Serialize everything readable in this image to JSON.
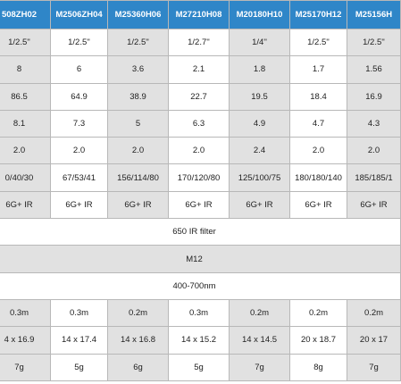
{
  "headers": [
    "508ZH02",
    "M2506ZH04",
    "M25360H06",
    "M27210H08",
    "M20180H10",
    "M25170H12",
    "M25156H"
  ],
  "rows": [
    [
      "1/2.5''",
      "1/2.5''",
      "1/2.5''",
      "1/2.7''",
      "1/4''",
      "1/2.5''",
      "1/2.5''"
    ],
    [
      "8",
      "6",
      "3.6",
      "2.1",
      "1.8",
      "1.7",
      "1.56"
    ],
    [
      "86.5",
      "64.9",
      "38.9",
      "22.7",
      "19.5",
      "18.4",
      "16.9"
    ],
    [
      "8.1",
      "7.3",
      "5",
      "6.3",
      "4.9",
      "4.7",
      "4.3"
    ],
    [
      "2.0",
      "2.0",
      "2.0",
      "2.0",
      "2.4",
      "2.0",
      "2.0"
    ],
    [
      "0/40/30",
      "67/53/41",
      "156/114/80",
      "170/120/80",
      "125/100/75",
      "180/180/140",
      "185/185/1"
    ],
    [
      "6G+ IR",
      "6G+ IR",
      "6G+ IR",
      "6G+ IR",
      "6G+ IR",
      "6G+ IR",
      "6G+ IR"
    ]
  ],
  "full_rows": [
    "650 IR filter",
    "M12",
    "400-700nm"
  ],
  "rows2": [
    [
      "0.3m",
      "0.3m",
      "0.2m",
      "0.3m",
      "0.2m",
      "0.2m",
      "0.2m"
    ],
    [
      "4 x 16.9",
      "14 x 17.4",
      "14 x 16.8",
      "14 x 15.2",
      "14 x 14.5",
      "20 x 18.7",
      "20 x 17"
    ],
    [
      "7g",
      "5g",
      "6g",
      "5g",
      "7g",
      "8g",
      "7g"
    ]
  ]
}
